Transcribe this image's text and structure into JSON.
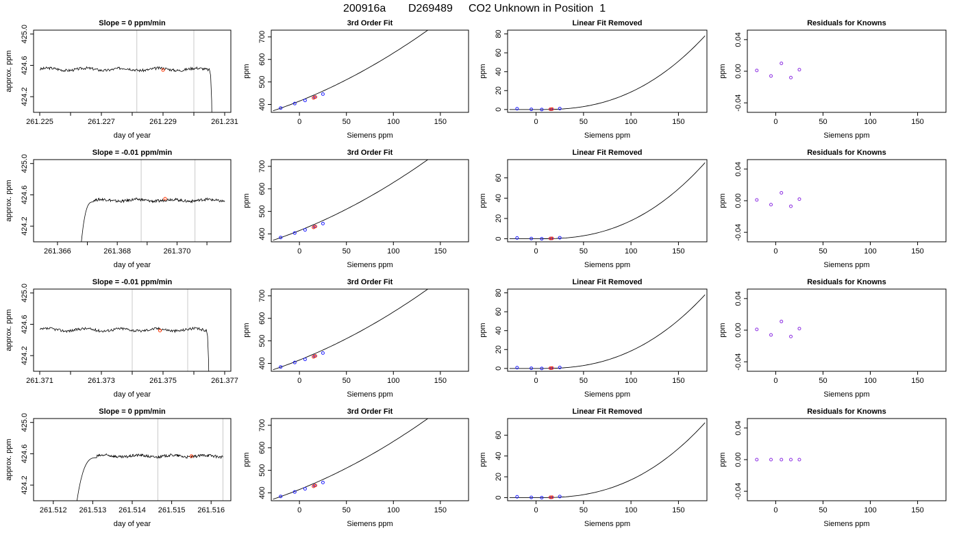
{
  "figure": {
    "run_id": "200916a",
    "tank_id": "D269489",
    "heading": "CO2 Unknown in Position  1"
  },
  "chart_data": [
    {
      "type": "line",
      "row": 0,
      "panel": "timeseries",
      "title": "Slope =  0  ppm/min",
      "xlabel": "day of year",
      "ylabel": "approx. ppm",
      "xlim": [
        261.2248,
        261.2312
      ],
      "ylim": [
        424.0,
        425.05
      ],
      "xticks": [
        "261.225",
        "261.227",
        "261.229",
        "261.231"
      ],
      "xticks_minor": [
        261.226,
        261.228,
        261.23
      ],
      "yticks": [
        "424.2",
        "424.6",
        "425.0"
      ],
      "vlines": [
        261.22815,
        261.23
      ],
      "trace": {
        "x0": 261.225,
        "x1": 261.2305,
        "level": 424.55,
        "drop_at": 261.2305,
        "drop_to": 424.0
      },
      "marker": {
        "x": 261.229,
        "y": 424.54
      }
    },
    {
      "type": "line",
      "row": 1,
      "panel": "timeseries",
      "title": "Slope =  -0.01  ppm/min",
      "xlabel": "day of year",
      "ylabel": "approx. ppm",
      "xlim": [
        261.3652,
        261.3718
      ],
      "ylim": [
        424.0,
        425.05
      ],
      "xticks": [
        "261.366",
        "261.368",
        "261.370"
      ],
      "xticks_minor": [
        261.367,
        261.369,
        261.371
      ],
      "yticks": [
        "424.2",
        "424.6",
        "425.0"
      ],
      "vlines": [
        261.3688,
        261.3706
      ],
      "trace": {
        "rise_from": 261.3668,
        "plateau_at": 261.3672,
        "x1": 261.3716,
        "level": 424.53
      },
      "marker": {
        "x": 261.3696,
        "y": 424.55
      }
    },
    {
      "type": "line",
      "row": 2,
      "panel": "timeseries",
      "title": "Slope =  -0.01  ppm/min",
      "xlabel": "day of year",
      "ylabel": "approx. ppm",
      "xlim": [
        261.3708,
        261.3772
      ],
      "ylim": [
        424.0,
        425.05
      ],
      "xticks": [
        "261.371",
        "261.373",
        "261.375",
        "261.377"
      ],
      "xticks_minor": [
        261.372,
        261.374,
        261.376
      ],
      "yticks": [
        "424.2",
        "424.6",
        "425.0"
      ],
      "vlines": [
        261.374,
        261.3758
      ],
      "trace": {
        "x0": 261.371,
        "x1": 261.3764,
        "level": 424.53,
        "drop_at": 261.3764,
        "drop_to": 424.0
      },
      "marker": {
        "x": 261.3749,
        "y": 424.52
      }
    },
    {
      "type": "line",
      "row": 3,
      "panel": "timeseries",
      "title": "Slope =  0  ppm/min",
      "xlabel": "day of year",
      "ylabel": "approx. ppm",
      "xlim": [
        261.5115,
        261.5165
      ],
      "ylim": [
        424.0,
        425.05
      ],
      "xticks": [
        "261.512",
        "261.513",
        "261.514",
        "261.515",
        "261.516"
      ],
      "yticks": [
        "424.2",
        "424.6",
        "425.0"
      ],
      "vlines": [
        261.51465,
        261.5163
      ],
      "trace": {
        "rise_from": 261.5126,
        "plateau_at": 261.5131,
        "x1": 261.5163,
        "level": 424.57
      },
      "marker": {
        "x": 261.5155,
        "y": 424.57
      }
    },
    {
      "type": "scatter",
      "row": 0,
      "panel": "fit",
      "title": "3rd Order Fit",
      "xlabel": "Siemens ppm",
      "ylabel": "ppm",
      "xlim": [
        -30,
        180
      ],
      "ylim": [
        365,
        730
      ],
      "xticks": [
        0,
        50,
        100,
        150
      ],
      "yticks": [
        400,
        500,
        600,
        700
      ],
      "curve": {
        "x0": -28,
        "x1": 178,
        "y_at_x0": 372,
        "slope": 1.4,
        "curv": 0.0047
      },
      "points": [
        [
          -20,
          384
        ],
        [
          -5,
          404
        ],
        [
          6,
          418
        ],
        [
          16,
          432
        ],
        [
          25,
          446
        ]
      ],
      "highlight": [
        [
          15,
          429
        ],
        [
          17,
          433
        ]
      ]
    },
    {
      "type": "scatter",
      "row": 1,
      "panel": "fit",
      "title": "3rd Order Fit",
      "xlabel": "Siemens ppm",
      "ylabel": "ppm",
      "xlim": [
        -30,
        180
      ],
      "ylim": [
        365,
        730
      ],
      "xticks": [
        0,
        50,
        100,
        150
      ],
      "yticks": [
        400,
        500,
        600,
        700
      ],
      "curve": {
        "x0": -28,
        "x1": 178,
        "y_at_x0": 372,
        "slope": 1.4,
        "curv": 0.0047
      },
      "points": [
        [
          -20,
          384
        ],
        [
          -5,
          404
        ],
        [
          6,
          418
        ],
        [
          16,
          432
        ],
        [
          25,
          446
        ]
      ],
      "highlight": [
        [
          15,
          429
        ],
        [
          17,
          433
        ]
      ]
    },
    {
      "type": "scatter",
      "row": 2,
      "panel": "fit",
      "title": "3rd Order Fit",
      "xlabel": "Siemens ppm",
      "ylabel": "ppm",
      "xlim": [
        -30,
        180
      ],
      "ylim": [
        365,
        730
      ],
      "xticks": [
        0,
        50,
        100,
        150
      ],
      "yticks": [
        400,
        500,
        600,
        700
      ],
      "curve": {
        "x0": -28,
        "x1": 178,
        "y_at_x0": 372,
        "slope": 1.4,
        "curv": 0.0047
      },
      "points": [
        [
          -20,
          384
        ],
        [
          -5,
          404
        ],
        [
          6,
          418
        ],
        [
          16,
          432
        ],
        [
          25,
          446
        ]
      ],
      "highlight": [
        [
          15,
          429
        ],
        [
          17,
          433
        ]
      ]
    },
    {
      "type": "scatter",
      "row": 3,
      "panel": "fit",
      "title": "3rd Order Fit",
      "xlabel": "Siemens ppm",
      "ylabel": "ppm",
      "xlim": [
        -30,
        180
      ],
      "ylim": [
        365,
        730
      ],
      "xticks": [
        0,
        50,
        100,
        150
      ],
      "yticks": [
        400,
        500,
        600,
        700
      ],
      "curve": {
        "x0": -28,
        "x1": 178,
        "y_at_x0": 372,
        "slope": 1.4,
        "curv": 0.0047
      },
      "points": [
        [
          -20,
          384
        ],
        [
          -5,
          404
        ],
        [
          6,
          418
        ],
        [
          16,
          432
        ],
        [
          25,
          446
        ]
      ],
      "highlight": [
        [
          15,
          429
        ],
        [
          17,
          433
        ]
      ]
    },
    {
      "type": "scatter",
      "row": 0,
      "panel": "linres",
      "title": "Linear Fit Removed",
      "xlabel": "Siemens ppm",
      "ylabel": "ppm",
      "xlim": [
        -30,
        180
      ],
      "ylim": [
        -3,
        84
      ],
      "xticks": [
        0,
        50,
        100,
        150
      ],
      "yticks": [
        0,
        20,
        40,
        60,
        80
      ],
      "curve": {
        "x0": -28,
        "x1": 178,
        "vertex": 5,
        "base": 0,
        "scale": 78
      },
      "points": [
        [
          -20,
          0.8
        ],
        [
          -5,
          0.2
        ],
        [
          6,
          0.0
        ],
        [
          16,
          0.3
        ],
        [
          25,
          1.0
        ]
      ],
      "highlight": [
        [
          15,
          0.3
        ],
        [
          17,
          0.4
        ]
      ]
    },
    {
      "type": "scatter",
      "row": 1,
      "panel": "linres",
      "title": "Linear Fit Removed",
      "xlabel": "Siemens ppm",
      "ylabel": "ppm",
      "xlim": [
        -30,
        180
      ],
      "ylim": [
        -3,
        78
      ],
      "xticks": [
        0,
        50,
        100,
        150
      ],
      "yticks": [
        0,
        20,
        40,
        60
      ],
      "curve": {
        "x0": -28,
        "x1": 178,
        "vertex": 5,
        "base": 0,
        "scale": 75
      },
      "points": [
        [
          -20,
          0.8
        ],
        [
          -5,
          0.2
        ],
        [
          6,
          0.0
        ],
        [
          16,
          0.3
        ],
        [
          25,
          1.0
        ]
      ],
      "highlight": [
        [
          15,
          0.3
        ],
        [
          17,
          0.4
        ]
      ]
    },
    {
      "type": "scatter",
      "row": 2,
      "panel": "linres",
      "title": "Linear Fit Removed",
      "xlabel": "Siemens ppm",
      "ylabel": "ppm",
      "xlim": [
        -30,
        180
      ],
      "ylim": [
        -3,
        84
      ],
      "xticks": [
        0,
        50,
        100,
        150
      ],
      "yticks": [
        0,
        20,
        40,
        60,
        80
      ],
      "curve": {
        "x0": -28,
        "x1": 178,
        "vertex": 5,
        "base": 0,
        "scale": 78
      },
      "points": [
        [
          -20,
          0.8
        ],
        [
          -5,
          0.2
        ],
        [
          6,
          0.0
        ],
        [
          16,
          0.3
        ],
        [
          25,
          1.0
        ]
      ],
      "highlight": [
        [
          15,
          0.3
        ],
        [
          17,
          0.4
        ]
      ]
    },
    {
      "type": "scatter",
      "row": 3,
      "panel": "linres",
      "title": "Linear Fit Removed",
      "xlabel": "Siemens ppm",
      "ylabel": "ppm",
      "xlim": [
        -30,
        180
      ],
      "ylim": [
        -3,
        76
      ],
      "xticks": [
        0,
        50,
        100,
        150
      ],
      "yticks": [
        0,
        20,
        40,
        60
      ],
      "curve": {
        "x0": -28,
        "x1": 178,
        "vertex": 5,
        "base": 0,
        "scale": 72
      },
      "points": [
        [
          -20,
          0.8
        ],
        [
          -5,
          0.2
        ],
        [
          6,
          0.0
        ],
        [
          16,
          0.3
        ],
        [
          25,
          1.0
        ]
      ],
      "highlight": [
        [
          15,
          0.3
        ],
        [
          17,
          0.4
        ]
      ]
    },
    {
      "type": "scatter",
      "row": 0,
      "panel": "knownres",
      "title": "Residuals for Knowns",
      "xlabel": "Siemens ppm",
      "ylabel": "ppm",
      "xlim": [
        -30,
        180
      ],
      "ylim": [
        -0.052,
        0.052
      ],
      "xticks": [
        0,
        50,
        100,
        150
      ],
      "yticks": [
        "-0.04",
        "0.00",
        "0.04"
      ],
      "points": [
        [
          -20,
          0.001
        ],
        [
          -5,
          -0.006
        ],
        [
          6,
          0.01
        ],
        [
          16,
          -0.008
        ],
        [
          25,
          0.002
        ]
      ]
    },
    {
      "type": "scatter",
      "row": 1,
      "panel": "knownres",
      "title": "Residuals for Knowns",
      "xlabel": "Siemens ppm",
      "ylabel": "ppm",
      "xlim": [
        -30,
        180
      ],
      "ylim": [
        -0.052,
        0.052
      ],
      "xticks": [
        0,
        50,
        100,
        150
      ],
      "yticks": [
        "-0.04",
        "0.00",
        "0.04"
      ],
      "points": [
        [
          -20,
          0.001
        ],
        [
          -5,
          -0.005
        ],
        [
          6,
          0.01
        ],
        [
          16,
          -0.007
        ],
        [
          25,
          0.002
        ]
      ]
    },
    {
      "type": "scatter",
      "row": 2,
      "panel": "knownres",
      "title": "Residuals for Knowns",
      "xlabel": "Siemens ppm",
      "ylabel": "ppm",
      "xlim": [
        -30,
        180
      ],
      "ylim": [
        -0.052,
        0.052
      ],
      "xticks": [
        0,
        50,
        100,
        150
      ],
      "yticks": [
        "-0.04",
        "0.00",
        "0.04"
      ],
      "points": [
        [
          -20,
          0.001
        ],
        [
          -5,
          -0.006
        ],
        [
          6,
          0.011
        ],
        [
          16,
          -0.008
        ],
        [
          25,
          0.002
        ]
      ]
    },
    {
      "type": "scatter",
      "row": 3,
      "panel": "knownres",
      "title": "Residuals for Knowns",
      "xlabel": "Siemens ppm",
      "ylabel": "ppm",
      "xlim": [
        -30,
        180
      ],
      "ylim": [
        -0.052,
        0.052
      ],
      "xticks": [
        0,
        50,
        100,
        150
      ],
      "yticks": [
        "-0.04",
        "0.00",
        "0.04"
      ],
      "points": [
        [
          -20,
          0.0
        ],
        [
          -5,
          0.0
        ],
        [
          6,
          0.0
        ],
        [
          16,
          0.0
        ],
        [
          25,
          0.0
        ]
      ]
    }
  ],
  "colors": {
    "trace": "#000000",
    "vline": "#c8c8c8",
    "point": "#1a1aff",
    "highlight": "#ff3300",
    "residual": "#8a2be2",
    "axes": "#000000"
  }
}
